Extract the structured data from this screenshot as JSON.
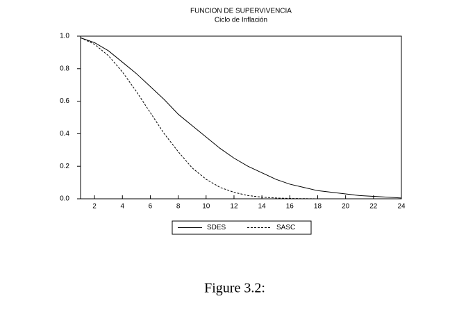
{
  "chart_data": {
    "type": "line",
    "title": "FUNCION DE SUPERVIVENCIA",
    "subtitle": "Ciclo de Inflación",
    "x": [
      1,
      2,
      3,
      4,
      5,
      6,
      7,
      8,
      9,
      10,
      11,
      12,
      13,
      14,
      15,
      16,
      17,
      18,
      19,
      20,
      21,
      22,
      23,
      24
    ],
    "series": [
      {
        "name": "SDES",
        "color": "#000000",
        "line_style": "solid",
        "values": [
          0.99,
          0.96,
          0.91,
          0.84,
          0.77,
          0.69,
          0.61,
          0.52,
          0.45,
          0.38,
          0.31,
          0.25,
          0.2,
          0.16,
          0.12,
          0.09,
          0.07,
          0.05,
          0.04,
          0.03,
          0.02,
          0.015,
          0.01,
          0.005
        ]
      },
      {
        "name": "SASC",
        "color": "#000000",
        "line_style": "dashed",
        "values": [
          0.99,
          0.95,
          0.88,
          0.78,
          0.66,
          0.53,
          0.4,
          0.29,
          0.19,
          0.12,
          0.07,
          0.04,
          0.02,
          0.01,
          0.005,
          0.002,
          0.001,
          0,
          0,
          0,
          0,
          0,
          0,
          0
        ]
      }
    ],
    "xlim": [
      1,
      24
    ],
    "xticks": [
      2,
      4,
      6,
      8,
      10,
      12,
      14,
      16,
      18,
      20,
      22,
      24
    ],
    "ylim": [
      0,
      1
    ],
    "yticks": [
      {
        "value": 0,
        "label": "0.0"
      },
      0.2,
      0.4,
      0.6,
      0.8,
      {
        "value": 1,
        "label": "1.0"
      }
    ],
    "legend": "bottom"
  },
  "caption": "Figure 3.2:"
}
